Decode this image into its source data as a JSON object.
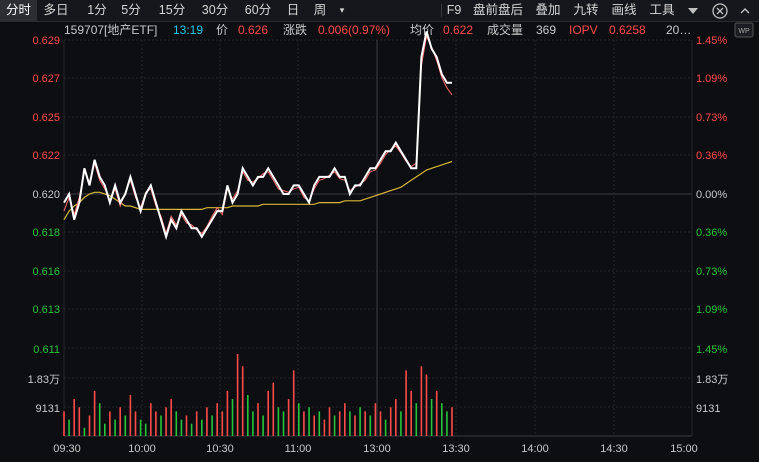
{
  "toolbar": {
    "tabs": [
      "分时",
      "多日",
      "1分",
      "5分",
      "15分",
      "30分",
      "60分",
      "日",
      "周"
    ],
    "more_icon": "dropdown-triangle-icon",
    "right_items": [
      "F9",
      "盘前盘后",
      "叠加",
      "九转",
      "画线",
      "工具"
    ],
    "gear_icon": "gear-icon",
    "wp_icon": "window-pin-icon"
  },
  "info": {
    "code": "159707[地产ETF]",
    "time": "13:19",
    "price_label": "价",
    "price": "0.626",
    "change_label": "涨跌",
    "change": "0.006(0.97%)",
    "avg_label": "均价",
    "avg": "0.622",
    "volume_label": "成交量",
    "volume": "369",
    "iopv_label": "IOPV",
    "iopv": "0.6258",
    "extra": "20…"
  },
  "colors": {
    "up": "#ff4a4a",
    "down": "#27c53a",
    "price_line": "#ffffff",
    "avg_line": "#d8b73a",
    "iopv_line": "#ff6a6a"
  },
  "chart_data": {
    "type": "line",
    "price_axis_left": [
      "0.629",
      "0.627",
      "0.625",
      "0.622",
      "0.620",
      "0.618",
      "0.616",
      "0.613"
    ],
    "price_axis_right": [
      "1.45%",
      "1.09%",
      "0.73%",
      "0.36%",
      "0.00%",
      "0.36%",
      "0.73%",
      "1.09%"
    ],
    "volume_axis_left": [
      "0.611",
      "1.83万",
      "9131"
    ],
    "volume_axis_right": [
      "1.45%",
      "1.83万",
      "9131"
    ],
    "x_ticks": [
      "09:30",
      "10:00",
      "10:30",
      "11:00",
      "13:00",
      "13:30",
      "14:00",
      "14:30",
      "15:00"
    ],
    "prev_close": 0.62,
    "ylim": [
      0.611,
      0.629
    ],
    "price": [
      0.6195,
      0.62,
      0.6185,
      0.6195,
      0.6215,
      0.6205,
      0.622,
      0.621,
      0.6205,
      0.6195,
      0.6205,
      0.6195,
      0.62,
      0.621,
      0.62,
      0.619,
      0.62,
      0.6205,
      0.6195,
      0.6185,
      0.6175,
      0.6185,
      0.618,
      0.619,
      0.6185,
      0.618,
      0.618,
      0.6175,
      0.618,
      0.6185,
      0.619,
      0.619,
      0.6205,
      0.6195,
      0.62,
      0.6215,
      0.621,
      0.6205,
      0.621,
      0.621,
      0.6215,
      0.621,
      0.6205,
      0.62,
      0.62,
      0.6205,
      0.6205,
      0.62,
      0.6195,
      0.6205,
      0.621,
      0.621,
      0.621,
      0.6215,
      0.621,
      0.621,
      0.62,
      0.6205,
      0.6205,
      0.621,
      0.6215,
      0.6215,
      0.622,
      0.6225,
      0.6225,
      0.623,
      0.6225,
      0.622,
      0.6215,
      0.6215,
      0.628,
      0.6295,
      0.6285,
      0.628,
      0.627,
      0.6265,
      0.6265
    ],
    "average": [
      0.6185,
      0.619,
      0.6193,
      0.6195,
      0.6198,
      0.62,
      0.6201,
      0.6201,
      0.62,
      0.6199,
      0.6197,
      0.6195,
      0.6193,
      0.6193,
      0.6192,
      0.6191,
      0.6191,
      0.6191,
      0.6191,
      0.6191,
      0.6191,
      0.6191,
      0.6191,
      0.6191,
      0.6191,
      0.6191,
      0.6191,
      0.6191,
      0.6192,
      0.6192,
      0.6192,
      0.6192,
      0.6192,
      0.6193,
      0.6193,
      0.6193,
      0.6193,
      0.6193,
      0.6193,
      0.6194,
      0.6194,
      0.6194,
      0.6194,
      0.6194,
      0.6194,
      0.6194,
      0.6194,
      0.6194,
      0.6194,
      0.6194,
      0.6195,
      0.6195,
      0.6195,
      0.6195,
      0.6195,
      0.6196,
      0.6196,
      0.6196,
      0.6196,
      0.6197,
      0.6198,
      0.6199,
      0.62,
      0.6201,
      0.6202,
      0.6203,
      0.6204,
      0.6206,
      0.6208,
      0.621,
      0.6212,
      0.6214,
      0.6215,
      0.6216,
      0.6217,
      0.6218,
      0.6219
    ],
    "iopv": [
      0.619,
      0.6198,
      0.6188,
      0.6198,
      0.6213,
      0.6207,
      0.6218,
      0.6208,
      0.6203,
      0.6196,
      0.6203,
      0.6193,
      0.6201,
      0.6208,
      0.6198,
      0.6192,
      0.6201,
      0.6203,
      0.6193,
      0.6187,
      0.6177,
      0.6187,
      0.6182,
      0.6188,
      0.6183,
      0.6182,
      0.6179,
      0.6177,
      0.6181,
      0.6187,
      0.6192,
      0.6188,
      0.6203,
      0.6197,
      0.6202,
      0.6213,
      0.6208,
      0.6207,
      0.6209,
      0.6212,
      0.6213,
      0.6208,
      0.6203,
      0.6202,
      0.6201,
      0.6203,
      0.6204,
      0.6198,
      0.6196,
      0.6203,
      0.6208,
      0.6209,
      0.6211,
      0.6213,
      0.6209,
      0.6208,
      0.6202,
      0.6204,
      0.6206,
      0.6208,
      0.6213,
      0.6214,
      0.6218,
      0.6223,
      0.6226,
      0.6228,
      0.6224,
      0.6219,
      0.6216,
      0.6218,
      0.6275,
      0.6292,
      0.6286,
      0.6278,
      0.6268,
      0.6262,
      0.6258
    ],
    "volume": [
      0.3,
      0.2,
      0.45,
      0.35,
      0.1,
      0.25,
      0.55,
      0.4,
      0.15,
      0.3,
      0.2,
      0.35,
      0.25,
      0.5,
      0.3,
      0.2,
      0.15,
      0.4,
      0.3,
      0.25,
      0.35,
      0.45,
      0.3,
      0.2,
      0.25,
      0.15,
      0.3,
      0.2,
      0.35,
      0.25,
      0.4,
      0.3,
      0.55,
      0.45,
      1.0,
      0.85,
      0.5,
      0.3,
      0.4,
      0.25,
      0.55,
      0.65,
      0.35,
      0.3,
      0.45,
      0.8,
      0.4,
      0.3,
      0.35,
      0.25,
      0.3,
      0.2,
      0.35,
      0.25,
      0.3,
      0.4,
      0.3,
      0.25,
      0.35,
      0.3,
      0.25,
      0.4,
      0.3,
      0.2,
      0.35,
      0.45,
      0.3,
      0.8,
      0.55,
      0.4,
      0.85,
      0.75,
      0.45,
      0.55,
      0.4,
      0.3,
      0.35
    ],
    "volume_dir": [
      "u",
      "d",
      "u",
      "u",
      "d",
      "u",
      "u",
      "d",
      "d",
      "u",
      "d",
      "u",
      "d",
      "u",
      "u",
      "d",
      "d",
      "u",
      "u",
      "d",
      "u",
      "u",
      "d",
      "d",
      "u",
      "d",
      "u",
      "d",
      "u",
      "d",
      "u",
      "u",
      "u",
      "d",
      "u",
      "u",
      "d",
      "d",
      "u",
      "d",
      "u",
      "u",
      "d",
      "d",
      "u",
      "u",
      "d",
      "u",
      "d",
      "u",
      "d",
      "u",
      "u",
      "d",
      "u",
      "u",
      "d",
      "u",
      "d",
      "u",
      "d",
      "u",
      "u",
      "d",
      "u",
      "u",
      "d",
      "u",
      "u",
      "d",
      "u",
      "u",
      "d",
      "u",
      "d",
      "d",
      "u"
    ],
    "volume_max_label": "1.83万",
    "volume_mid_label": "9131"
  }
}
